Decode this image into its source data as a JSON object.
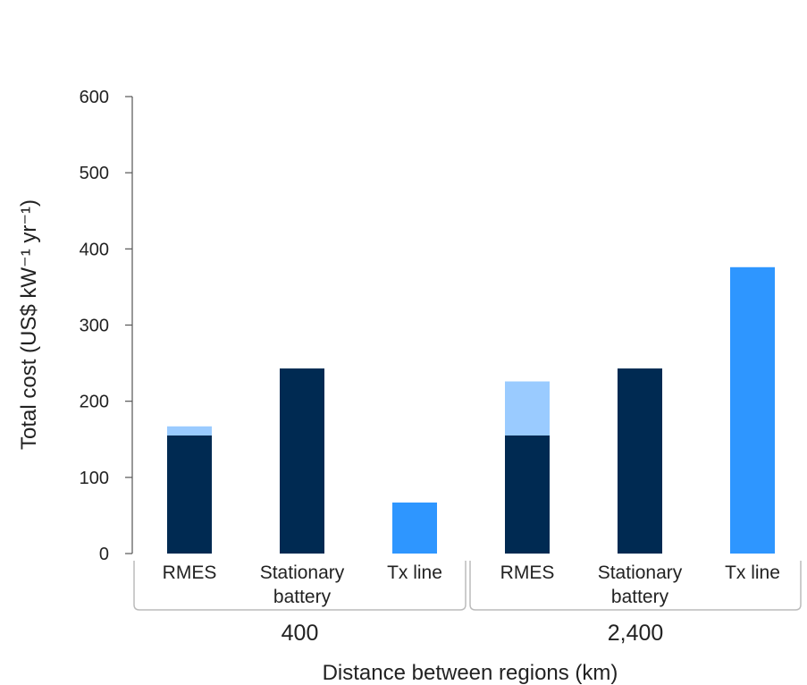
{
  "colors": {
    "dark_navy": "#002a52",
    "light_blue": "#9acbff",
    "bright_blue": "#2e96ff",
    "axis": "#555555",
    "bracket": "#bbbbbb"
  },
  "chart_data": {
    "type": "bar",
    "stacked": true,
    "xlabel": "Distance between regions (km)",
    "ylabel": "Total cost (US$ kW⁻¹ yr⁻¹)",
    "ylim": [
      0,
      600
    ],
    "yticks": [
      0,
      100,
      200,
      300,
      400,
      500,
      600
    ],
    "grid": false,
    "groups": [
      {
        "label": "400",
        "bars": [
          {
            "label_lines": [
              "RMES"
            ],
            "segments": [
              {
                "value": 155,
                "color": "#002a52"
              },
              {
                "value": 12,
                "color": "#9acbff"
              }
            ]
          },
          {
            "label_lines": [
              "Stationary",
              "battery"
            ],
            "segments": [
              {
                "value": 243,
                "color": "#002a52"
              }
            ]
          },
          {
            "label_lines": [
              "Tx line"
            ],
            "segments": [
              {
                "value": 67,
                "color": "#2e96ff"
              }
            ]
          }
        ]
      },
      {
        "label": "2,400",
        "bars": [
          {
            "label_lines": [
              "RMES"
            ],
            "segments": [
              {
                "value": 155,
                "color": "#002a52"
              },
              {
                "value": 71,
                "color": "#9acbff"
              }
            ]
          },
          {
            "label_lines": [
              "Stationary",
              "battery"
            ],
            "segments": [
              {
                "value": 243,
                "color": "#002a52"
              }
            ]
          },
          {
            "label_lines": [
              "Tx line"
            ],
            "segments": [
              {
                "value": 376,
                "color": "#2e96ff"
              }
            ]
          }
        ]
      }
    ]
  }
}
